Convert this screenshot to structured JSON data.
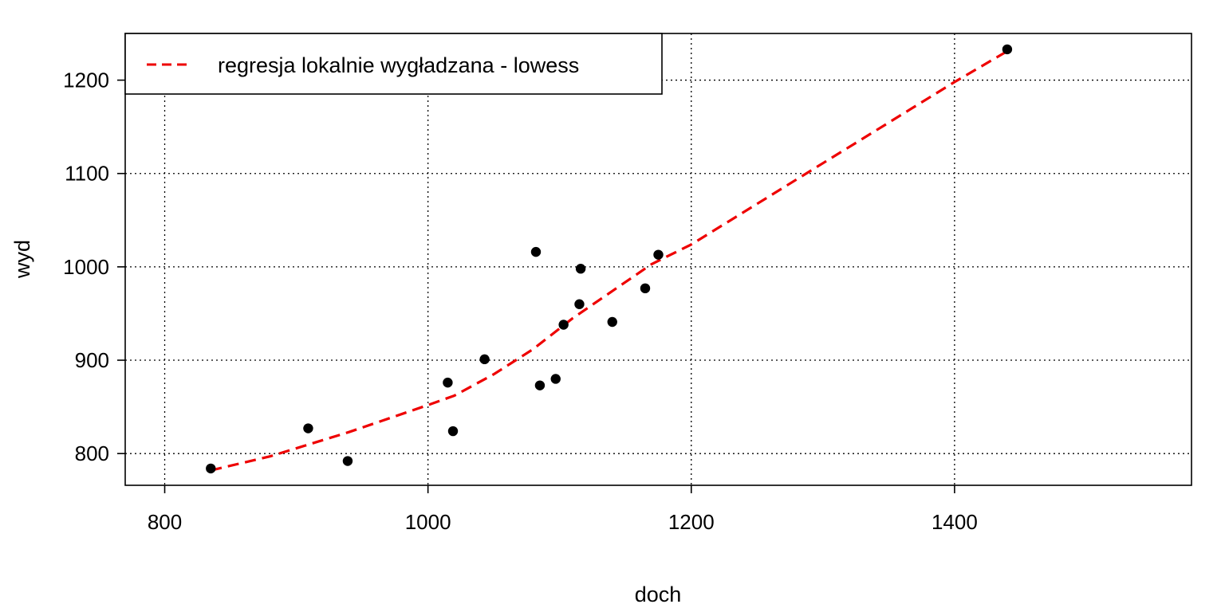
{
  "chart_data": {
    "type": "scatter",
    "title": "",
    "xlabel": "doch",
    "ylabel": "wyd",
    "xlim": [
      770,
      1580
    ],
    "ylim": [
      766,
      1250
    ],
    "x_ticks": [
      800,
      1000,
      1200,
      1400
    ],
    "y_ticks": [
      800,
      900,
      1000,
      1100,
      1200
    ],
    "grid": true,
    "legend_position": "top-left",
    "points": {
      "x": [
        835,
        909,
        939,
        1015,
        1019,
        1043,
        1082,
        1085,
        1097,
        1103,
        1115,
        1116,
        1140,
        1165,
        1175,
        1440
      ],
      "y": [
        784,
        827,
        792,
        876,
        824,
        901,
        1016,
        873,
        880,
        938,
        960,
        998,
        941,
        977,
        1013,
        1233
      ],
      "color": "#000000"
    },
    "series": [
      {
        "name": "regresja lokalnie wygładzana - lowess",
        "color": "#ee0000",
        "style": "dashed",
        "x": [
          835,
          880,
          940,
          1000,
          1020,
          1050,
          1080,
          1110,
          1140,
          1170,
          1200,
          1300,
          1400,
          1440
        ],
        "y": [
          782,
          797,
          823,
          852,
          862,
          885,
          912,
          945,
          974,
          1003,
          1024,
          1111,
          1198,
          1231
        ]
      }
    ]
  }
}
